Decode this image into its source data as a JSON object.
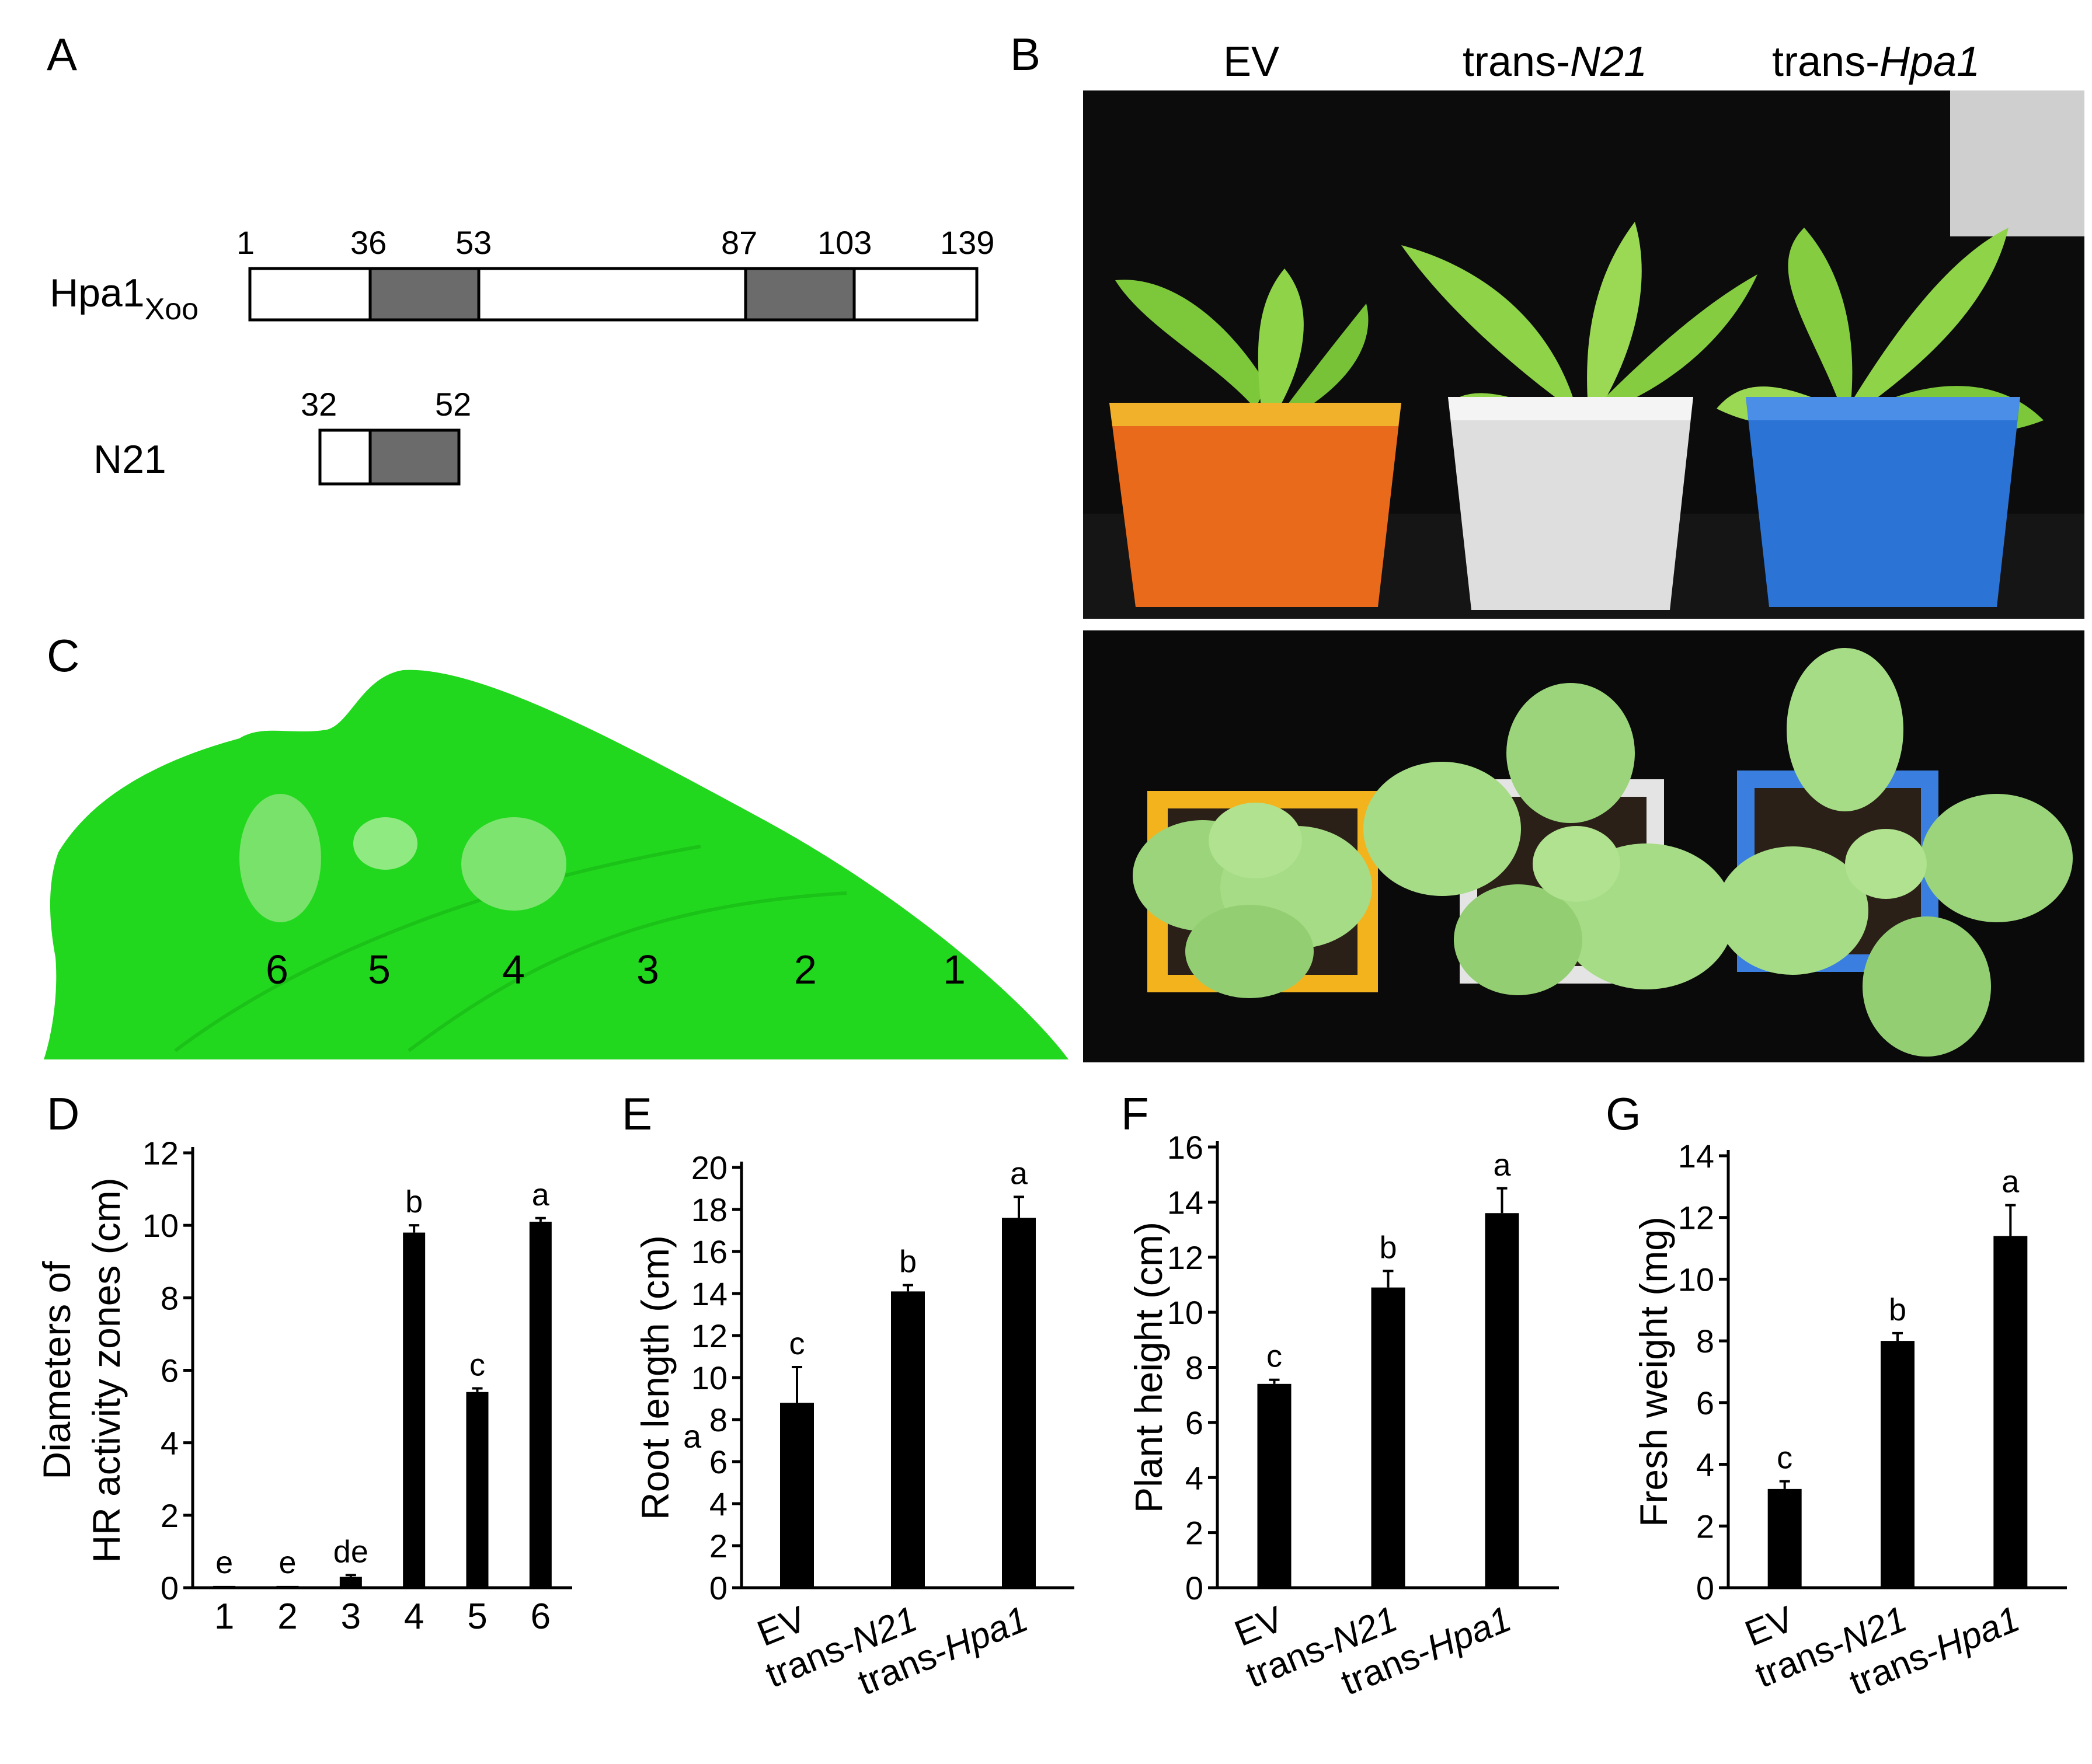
{
  "panel_letters": {
    "a": "A",
    "b": "B",
    "c": "C",
    "d": "D",
    "e": "E",
    "f": "F",
    "g": "G"
  },
  "panel_a": {
    "hpa1_label": "Hpa1",
    "hpa1_subscript": "Xoo",
    "n21_label": "N21",
    "hpa1_positions": [
      "1",
      "36",
      "53",
      "87",
      "103",
      "139"
    ],
    "n21_positions": [
      "32",
      "52"
    ]
  },
  "panel_b": {
    "column_labels": [
      {
        "prefix": "",
        "italic": "EV_plain"
      },
      {
        "prefix": "trans-",
        "italic": "N21"
      },
      {
        "prefix": "trans-",
        "italic": "Hpa1"
      }
    ],
    "ev_label": "EV"
  },
  "panel_c": {
    "spot_labels": [
      "6",
      "5",
      "4",
      "3",
      "2",
      "1"
    ]
  },
  "colors": {
    "bar": "#000000",
    "domain_fill": "#6b6b6b",
    "leaf": "#22d81e",
    "photo_bg": "#0b0b0b"
  },
  "chart_data": [
    {
      "type": "bar",
      "panel": "D",
      "ylabel_line1": "Diameters of",
      "ylabel_line2": "HR activity zones (cm)",
      "xlabel": "",
      "categories": [
        "1",
        "2",
        "3",
        "4",
        "5",
        "6"
      ],
      "values": [
        0.05,
        0.05,
        0.3,
        9.8,
        5.4,
        10.1
      ],
      "errors": [
        0,
        0,
        0.05,
        0.2,
        0.1,
        0.1
      ],
      "letters": [
        "e",
        "e",
        "de",
        "b",
        "c",
        "a"
      ],
      "ylim": [
        0,
        12
      ],
      "yticks": [
        "0",
        "2",
        "4",
        "6",
        "8",
        "10",
        "12"
      ]
    },
    {
      "type": "bar",
      "panel": "E",
      "ylabel": "Root length (cm)",
      "stray_label": "a",
      "categories": [
        {
          "prefix": "",
          "italic": "",
          "plain": "EV"
        },
        {
          "prefix": "trans-",
          "italic": "N21"
        },
        {
          "prefix": "trans-",
          "italic": "Hpa1"
        }
      ],
      "values": [
        8.8,
        14.1,
        17.6
      ],
      "errors": [
        1.7,
        0.3,
        1.0
      ],
      "letters": [
        "c",
        "b",
        "a"
      ],
      "ylim": [
        0,
        20
      ],
      "yticks": [
        "0",
        "2",
        "4",
        "6",
        "8",
        "10",
        "12",
        "14",
        "16",
        "18",
        "20"
      ]
    },
    {
      "type": "bar",
      "panel": "F",
      "ylabel": "Plant height (cm)",
      "categories": [
        {
          "prefix": "",
          "italic": "",
          "plain": "EV"
        },
        {
          "prefix": "trans-",
          "italic": "N21"
        },
        {
          "prefix": "trans-",
          "italic": "Hpa1"
        }
      ],
      "values": [
        7.4,
        10.9,
        13.6
      ],
      "errors": [
        0.15,
        0.6,
        0.9
      ],
      "letters": [
        "c",
        "b",
        "a"
      ],
      "ylim": [
        0,
        16
      ],
      "yticks": [
        "0",
        "2",
        "4",
        "6",
        "8",
        "10",
        "12",
        "14",
        "16"
      ]
    },
    {
      "type": "bar",
      "panel": "G",
      "ylabel": "Fresh weight (mg)",
      "categories": [
        {
          "prefix": "",
          "italic": "",
          "plain": "EV"
        },
        {
          "prefix": "trans-",
          "italic": "N21"
        },
        {
          "prefix": "trans-",
          "italic": "Hpa1"
        }
      ],
      "values": [
        3.2,
        8.0,
        11.4
      ],
      "errors": [
        0.25,
        0.25,
        1.0
      ],
      "letters": [
        "c",
        "b",
        "a"
      ],
      "ylim": [
        0,
        14
      ],
      "yticks": [
        "0",
        "2",
        "4",
        "6",
        "8",
        "10",
        "12",
        "14"
      ]
    }
  ]
}
